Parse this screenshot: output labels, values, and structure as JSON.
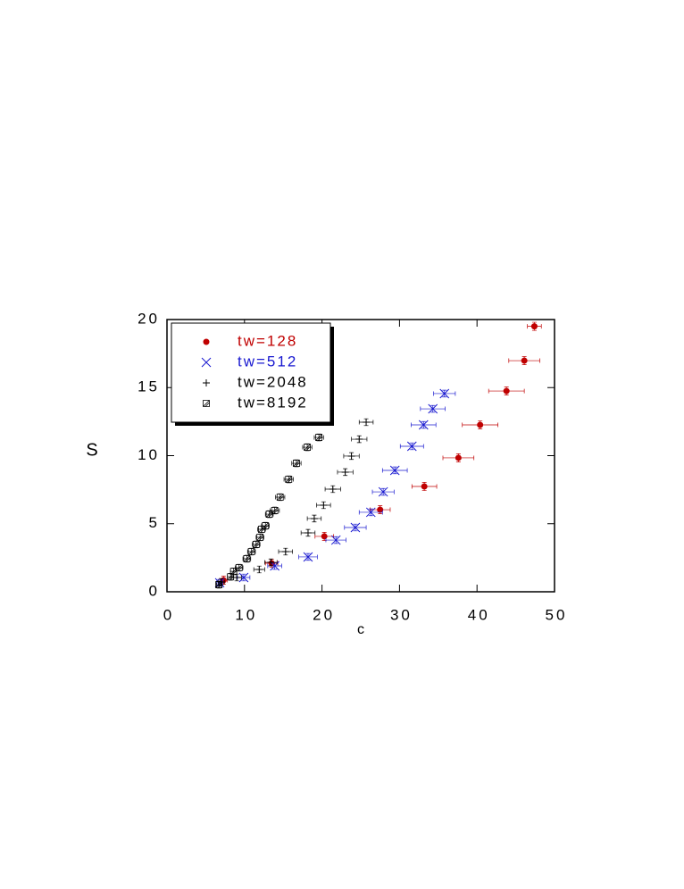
{
  "chart_data": {
    "type": "scatter",
    "xlabel": "c",
    "ylabel": "S",
    "xlim": [
      0,
      50
    ],
    "ylim": [
      0,
      20
    ],
    "xticks": [
      0,
      10,
      20,
      30,
      40,
      50
    ],
    "yticks": [
      0,
      5,
      10,
      15,
      20
    ],
    "legend": "upper left",
    "series": [
      {
        "name": "tw=128",
        "color": "#c00000",
        "marker": "circle",
        "x": [
          7.3,
          13.5,
          20.3,
          27.5,
          33.2,
          37.6,
          40.4,
          43.8,
          46.1,
          47.4
        ],
        "values": [
          0.85,
          2.1,
          4.07,
          6.03,
          7.74,
          9.84,
          12.26,
          14.75,
          16.98,
          19.5
        ],
        "xerr": [
          0.5,
          0.8,
          1.2,
          1.3,
          1.6,
          2.0,
          2.3,
          2.3,
          2.0,
          0.9
        ],
        "yerr": 0.3
      },
      {
        "name": "tw=512",
        "color": "#1a1ad0",
        "marker": "x",
        "x": [
          6.8,
          9.9,
          13.9,
          18.2,
          21.8,
          24.3,
          26.3,
          27.9,
          29.4,
          31.6,
          33.1,
          34.3,
          35.8
        ],
        "values": [
          0.66,
          1.05,
          1.9,
          2.56,
          3.8,
          4.72,
          5.84,
          7.34,
          8.92,
          10.69,
          12.26,
          13.44,
          14.56
        ],
        "xerr": [
          0.4,
          0.8,
          0.9,
          1.2,
          1.3,
          1.4,
          1.5,
          1.4,
          1.6,
          1.5,
          1.6,
          1.6,
          1.4
        ],
        "yerr": 0.25
      },
      {
        "name": "tw=2048",
        "color": "#000000",
        "marker": "plus",
        "x": [
          7.0,
          9.0,
          11.9,
          13.4,
          15.3,
          18.2,
          19.0,
          20.2,
          21.4,
          23.0,
          23.8,
          24.8,
          25.7
        ],
        "values": [
          0.72,
          1.05,
          1.64,
          2.16,
          2.95,
          4.33,
          5.38,
          6.36,
          7.54,
          8.79,
          9.97,
          11.21,
          12.46
        ],
        "xerr": [
          0.4,
          0.6,
          0.7,
          0.8,
          0.9,
          0.9,
          0.9,
          0.9,
          1.0,
          1.0,
          1.0,
          1.0,
          0.9
        ],
        "yerr": 0.25
      },
      {
        "name": "tw=8192",
        "color": "#000000",
        "marker": "square-slash",
        "x": [
          6.7,
          8.2,
          8.6,
          9.3,
          10.3,
          10.9,
          11.5,
          12.0,
          12.2,
          12.7,
          13.2,
          13.9,
          14.6,
          15.7,
          16.7,
          18.1,
          19.6
        ],
        "values": [
          0.52,
          1.1,
          1.5,
          1.77,
          2.43,
          2.95,
          3.48,
          4.0,
          4.59,
          4.85,
          5.7,
          5.97,
          6.95,
          8.26,
          9.44,
          10.62,
          11.34
        ],
        "xerr": [
          0.3,
          0.4,
          0.4,
          0.5,
          0.5,
          0.5,
          0.5,
          0.5,
          0.5,
          0.5,
          0.5,
          0.6,
          0.6,
          0.6,
          0.6,
          0.6,
          0.6
        ],
        "yerr": 0.25
      }
    ]
  }
}
